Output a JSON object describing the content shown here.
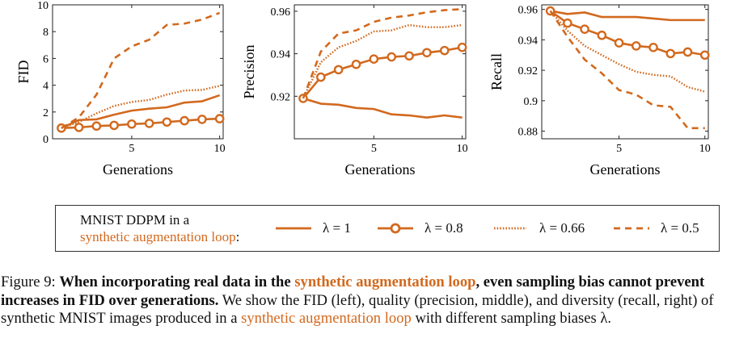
{
  "colors": {
    "series": "#d2691e",
    "axis": "#222222"
  },
  "chart_data": [
    {
      "type": "line",
      "ylabel": "FID",
      "xlabel": "Generations",
      "xlim": [
        0.5,
        10.2
      ],
      "ylim": [
        0,
        10
      ],
      "xticks": [
        5,
        10
      ],
      "yticks": [
        0,
        2,
        4,
        6,
        8,
        10
      ],
      "x": [
        1,
        2,
        3,
        4,
        5,
        6,
        7,
        8,
        9,
        10
      ],
      "series": [
        {
          "name": "λ = 1",
          "style": "solid",
          "values": [
            0.8,
            1.4,
            1.45,
            1.8,
            2.1,
            2.25,
            2.35,
            2.7,
            2.8,
            3.25
          ]
        },
        {
          "name": "λ = 0.8",
          "style": "marker",
          "values": [
            0.8,
            0.85,
            0.95,
            1.0,
            1.1,
            1.15,
            1.25,
            1.35,
            1.45,
            1.5
          ]
        },
        {
          "name": "λ = 0.66",
          "style": "dotted",
          "values": [
            0.8,
            1.25,
            1.9,
            2.45,
            2.75,
            2.9,
            3.3,
            3.6,
            3.65,
            3.95
          ]
        },
        {
          "name": "λ = 0.5",
          "style": "dashed",
          "values": [
            0.8,
            1.6,
            3.3,
            6.0,
            6.9,
            7.4,
            8.5,
            8.6,
            8.9,
            9.4
          ]
        }
      ]
    },
    {
      "type": "line",
      "ylabel": "Precision",
      "xlabel": "Generations",
      "xlim": [
        0.5,
        10.2
      ],
      "ylim": [
        0.9,
        0.963
      ],
      "xticks": [
        5,
        10
      ],
      "yticks": [
        0.92,
        0.94,
        0.96
      ],
      "x": [
        1,
        2,
        3,
        4,
        5,
        6,
        7,
        8,
        9,
        10
      ],
      "series": [
        {
          "name": "λ = 1",
          "style": "solid",
          "values": [
            0.919,
            0.9165,
            0.916,
            0.9145,
            0.914,
            0.9115,
            0.911,
            0.91,
            0.911,
            0.91
          ]
        },
        {
          "name": "λ = 0.8",
          "style": "marker",
          "values": [
            0.919,
            0.929,
            0.9325,
            0.935,
            0.9375,
            0.9385,
            0.939,
            0.9405,
            0.9415,
            0.943
          ]
        },
        {
          "name": "λ = 0.66",
          "style": "dotted",
          "values": [
            0.919,
            0.936,
            0.943,
            0.946,
            0.9505,
            0.951,
            0.9535,
            0.9525,
            0.9525,
            0.9535
          ]
        },
        {
          "name": "λ = 0.5",
          "style": "dashed",
          "values": [
            0.919,
            0.941,
            0.9495,
            0.951,
            0.955,
            0.957,
            0.958,
            0.9595,
            0.9605,
            0.961
          ]
        }
      ]
    },
    {
      "type": "line",
      "ylabel": "Recall",
      "xlabel": "Generations",
      "xlim": [
        0.5,
        10.2
      ],
      "ylim": [
        0.875,
        0.963
      ],
      "xticks": [
        5,
        10
      ],
      "yticks": [
        0.88,
        0.9,
        0.92,
        0.94,
        0.96
      ],
      "x": [
        1,
        2,
        3,
        4,
        5,
        6,
        7,
        8,
        9,
        10
      ],
      "series": [
        {
          "name": "λ = 1",
          "style": "solid",
          "values": [
            0.959,
            0.957,
            0.958,
            0.955,
            0.955,
            0.955,
            0.954,
            0.953,
            0.953,
            0.953
          ]
        },
        {
          "name": "λ = 0.8",
          "style": "marker",
          "values": [
            0.959,
            0.951,
            0.947,
            0.943,
            0.938,
            0.936,
            0.935,
            0.931,
            0.932,
            0.93
          ]
        },
        {
          "name": "λ = 0.66",
          "style": "dotted",
          "values": [
            0.959,
            0.946,
            0.936,
            0.93,
            0.924,
            0.919,
            0.917,
            0.916,
            0.909,
            0.906
          ]
        },
        {
          "name": "λ = 0.5",
          "style": "dashed",
          "values": [
            0.959,
            0.942,
            0.927,
            0.918,
            0.907,
            0.904,
            0.897,
            0.896,
            0.882,
            0.882
          ]
        }
      ]
    }
  ],
  "legend": {
    "title_line1": "MNIST DDPM in a",
    "title_line2": "synthetic augmentation loop",
    "title_colon": ":",
    "items": [
      "λ = 1",
      "λ = 0.8",
      "λ = 0.66",
      "λ = 0.5"
    ]
  },
  "caption": {
    "prefix": "Figure 9: ",
    "bold1": "When incorporating real data in the ",
    "highlight1": "synthetic augmentation loop",
    "bold2": ", even sampling bias cannot prevent increases in FID over generations.",
    "text1": " We show the FID (left), quality (precision, middle), and diversity (recall, right) of synthetic MNIST images produced in a ",
    "highlight2": "synthetic augmentation loop",
    "text2": " with different sampling biases λ."
  }
}
